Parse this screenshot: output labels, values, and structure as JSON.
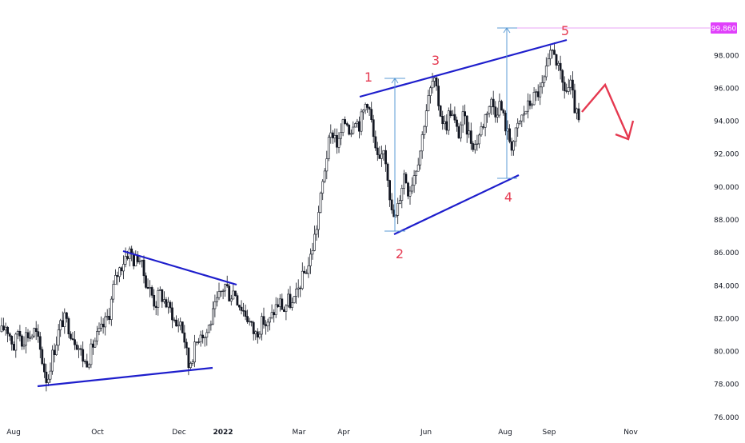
{
  "chart_data": {
    "type": "candlestick",
    "instrument_title": "",
    "x_tick_labels": [
      "Aug",
      "Oct",
      "Dec",
      "2022",
      "Mar",
      "Apr",
      "Jun",
      "Aug",
      "Sep",
      "Nov"
    ],
    "y_tick_labels": [
      "76.000",
      "78.000",
      "80.000",
      "82.000",
      "84.000",
      "86.000",
      "88.000",
      "90.000",
      "92.000",
      "94.000",
      "96.000",
      "98.000"
    ],
    "y_range": [
      75.6,
      100.4
    ],
    "current_price_label": "99.860",
    "current_price": 99.86,
    "wave_labels": [
      "1",
      "2",
      "3",
      "4",
      "5"
    ],
    "price_path": [
      81.2,
      81.6,
      81.0,
      80.2,
      81.4,
      80.6,
      81.1,
      80.9,
      81.3,
      80.4,
      79.2,
      78.1,
      79.6,
      80.4,
      81.5,
      82.0,
      81.6,
      81.0,
      80.6,
      80.0,
      79.3,
      79.6,
      80.4,
      80.9,
      81.3,
      81.8,
      82.4,
      84.0,
      84.8,
      85.3,
      85.9,
      86.1,
      85.4,
      85.9,
      84.9,
      84.1,
      83.6,
      82.8,
      83.6,
      83.2,
      82.7,
      82.4,
      81.5,
      81.9,
      80.8,
      79.1,
      79.8,
      80.6,
      81.3,
      80.9,
      81.6,
      82.3,
      83.1,
      83.7,
      84.1,
      83.3,
      83.8,
      83.0,
      82.6,
      82.2,
      81.6,
      81.0,
      81.4,
      81.9,
      81.5,
      82.1,
      82.7,
      83.0,
      82.5,
      83.1,
      82.8,
      83.4,
      84.2,
      84.8,
      85.3,
      86.5,
      87.8,
      89.6,
      91.5,
      92.9,
      93.4,
      92.4,
      93.6,
      94.1,
      93.3,
      94.4,
      93.7,
      94.5,
      95.4,
      94.1,
      92.1,
      91.3,
      92.5,
      90.8,
      88.3,
      88.1,
      89.6,
      90.9,
      89.7,
      90.5,
      91.4,
      92.5,
      94.4,
      95.6,
      96.6,
      95.4,
      94.2,
      93.6,
      94.8,
      94.0,
      93.1,
      94.3,
      93.6,
      92.9,
      92.5,
      93.2,
      93.9,
      94.8,
      95.2,
      94.6,
      95.1,
      94.1,
      93.1,
      92.5,
      93.4,
      94.1,
      94.6,
      95.0,
      95.4,
      95.7,
      95.9,
      96.8,
      97.8,
      98.5,
      97.2,
      96.3,
      95.8,
      96.2,
      94.8,
      93.9
    ]
  },
  "colors": {
    "trendline": "#1e1ecc",
    "wave_label": "#e53950",
    "projection_arrow": "#e53950",
    "measure_line": "#5b9bd5",
    "price_marker_bg": "#e040fb",
    "candle": "#131722"
  }
}
